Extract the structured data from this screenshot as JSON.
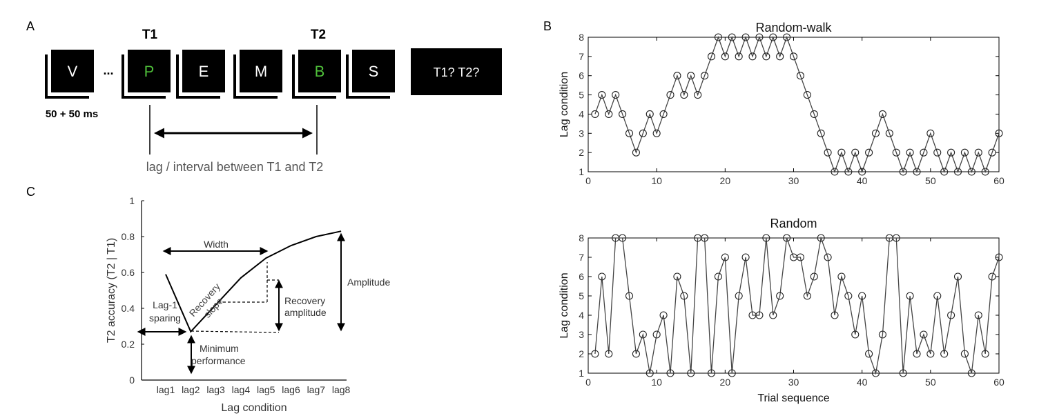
{
  "panel_a": {
    "label": "A",
    "t1_label": "T1",
    "t2_label": "T2",
    "stream": [
      {
        "letter": "V",
        "target": false
      },
      {
        "letter": "P",
        "target": true
      },
      {
        "letter": "E",
        "target": false
      },
      {
        "letter": "M",
        "target": false
      },
      {
        "letter": "B",
        "target": true
      },
      {
        "letter": "S",
        "target": false
      }
    ],
    "ellipsis": "...",
    "timing": "50 + 50 ms",
    "question": "T1? T2?",
    "lag_caption": "lag / interval between T1 and T2",
    "target_color": "#4fbf3a"
  },
  "panel_b": {
    "label": "B",
    "chart_data": [
      {
        "type": "line",
        "title": "Random-walk",
        "xlabel": "",
        "ylabel": "Lag condition",
        "xlim": [
          0,
          60
        ],
        "ylim": [
          1,
          8
        ],
        "x_ticks": [
          "0",
          "10",
          "20",
          "30",
          "40",
          "50",
          "60"
        ],
        "y_ticks": [
          "1",
          "2",
          "3",
          "4",
          "5",
          "6",
          "7",
          "8"
        ],
        "x": [
          1,
          2,
          3,
          4,
          5,
          6,
          7,
          8,
          9,
          10,
          11,
          12,
          13,
          14,
          15,
          16,
          17,
          18,
          19,
          20,
          21,
          22,
          23,
          24,
          25,
          26,
          27,
          28,
          29,
          30,
          31,
          32,
          33,
          34,
          35,
          36,
          37,
          38,
          39,
          40,
          41,
          42,
          43,
          44,
          45,
          46,
          47,
          48,
          49,
          50,
          51,
          52,
          53,
          54,
          55,
          56,
          57,
          58,
          59,
          60
        ],
        "values": [
          4,
          5,
          4,
          5,
          4,
          3,
          2,
          3,
          4,
          3,
          4,
          5,
          6,
          5,
          6,
          5,
          6,
          7,
          8,
          7,
          8,
          7,
          8,
          7,
          8,
          7,
          8,
          7,
          8,
          7,
          6,
          5,
          4,
          3,
          2,
          1,
          2,
          1,
          2,
          1,
          2,
          3,
          4,
          3,
          2,
          1,
          2,
          1,
          2,
          3,
          2,
          1,
          2,
          1,
          2,
          1,
          2,
          1,
          2,
          3
        ]
      },
      {
        "type": "line",
        "title": "Random",
        "xlabel": "Trial sequence",
        "ylabel": "Lag condition",
        "xlim": [
          0,
          60
        ],
        "ylim": [
          1,
          8
        ],
        "x_ticks": [
          "0",
          "10",
          "20",
          "30",
          "40",
          "50",
          "60"
        ],
        "y_ticks": [
          "1",
          "2",
          "3",
          "4",
          "5",
          "6",
          "7",
          "8"
        ],
        "x": [
          1,
          2,
          3,
          4,
          5,
          6,
          7,
          8,
          9,
          10,
          11,
          12,
          13,
          14,
          15,
          16,
          17,
          18,
          19,
          20,
          21,
          22,
          23,
          24,
          25,
          26,
          27,
          28,
          29,
          30,
          31,
          32,
          33,
          34,
          35,
          36,
          37,
          38,
          39,
          40,
          41,
          42,
          43,
          44,
          45,
          46,
          47,
          48,
          49,
          50,
          51,
          52,
          53,
          54,
          55,
          56,
          57,
          58,
          59,
          60
        ],
        "values": [
          2,
          6,
          2,
          8,
          8,
          5,
          2,
          3,
          1,
          3,
          4,
          1,
          6,
          5,
          1,
          8,
          8,
          1,
          6,
          7,
          1,
          5,
          7,
          4,
          4,
          8,
          4,
          5,
          8,
          7,
          7,
          5,
          6,
          8,
          7,
          4,
          6,
          5,
          3,
          5,
          2,
          1,
          3,
          8,
          8,
          1,
          5,
          2,
          3,
          2,
          5,
          2,
          4,
          6,
          2,
          1,
          4,
          2,
          6,
          7
        ]
      }
    ]
  },
  "panel_c": {
    "label": "C",
    "chart_data": {
      "type": "line",
      "title": "",
      "xlabel": "Lag condition",
      "ylabel": "T2 accuracy (T2 | T1)",
      "ylim": [
        0,
        1
      ],
      "categories": [
        "lag1",
        "lag2",
        "lag3",
        "lag4",
        "lag5",
        "lag6",
        "lag7",
        "lag8"
      ],
      "y_ticks": [
        "0",
        "0.2",
        "0.4",
        "0.6",
        "0.8",
        "1"
      ],
      "values": [
        0.59,
        0.27,
        0.42,
        0.57,
        0.68,
        0.75,
        0.8,
        0.83
      ],
      "annotations": {
        "width": "Width",
        "recovery_slope_line1": "Recovery",
        "recovery_slope_line2": "slope",
        "recovery_amplitude_line1": "Recovery",
        "recovery_amplitude_line2": "amplitude",
        "amplitude": "Amplitude",
        "lag1_sparing_line1": "Lag-1",
        "lag1_sparing_line2": "sparing",
        "minimum_line1": "Minimum",
        "minimum_line2": "performance"
      }
    }
  }
}
